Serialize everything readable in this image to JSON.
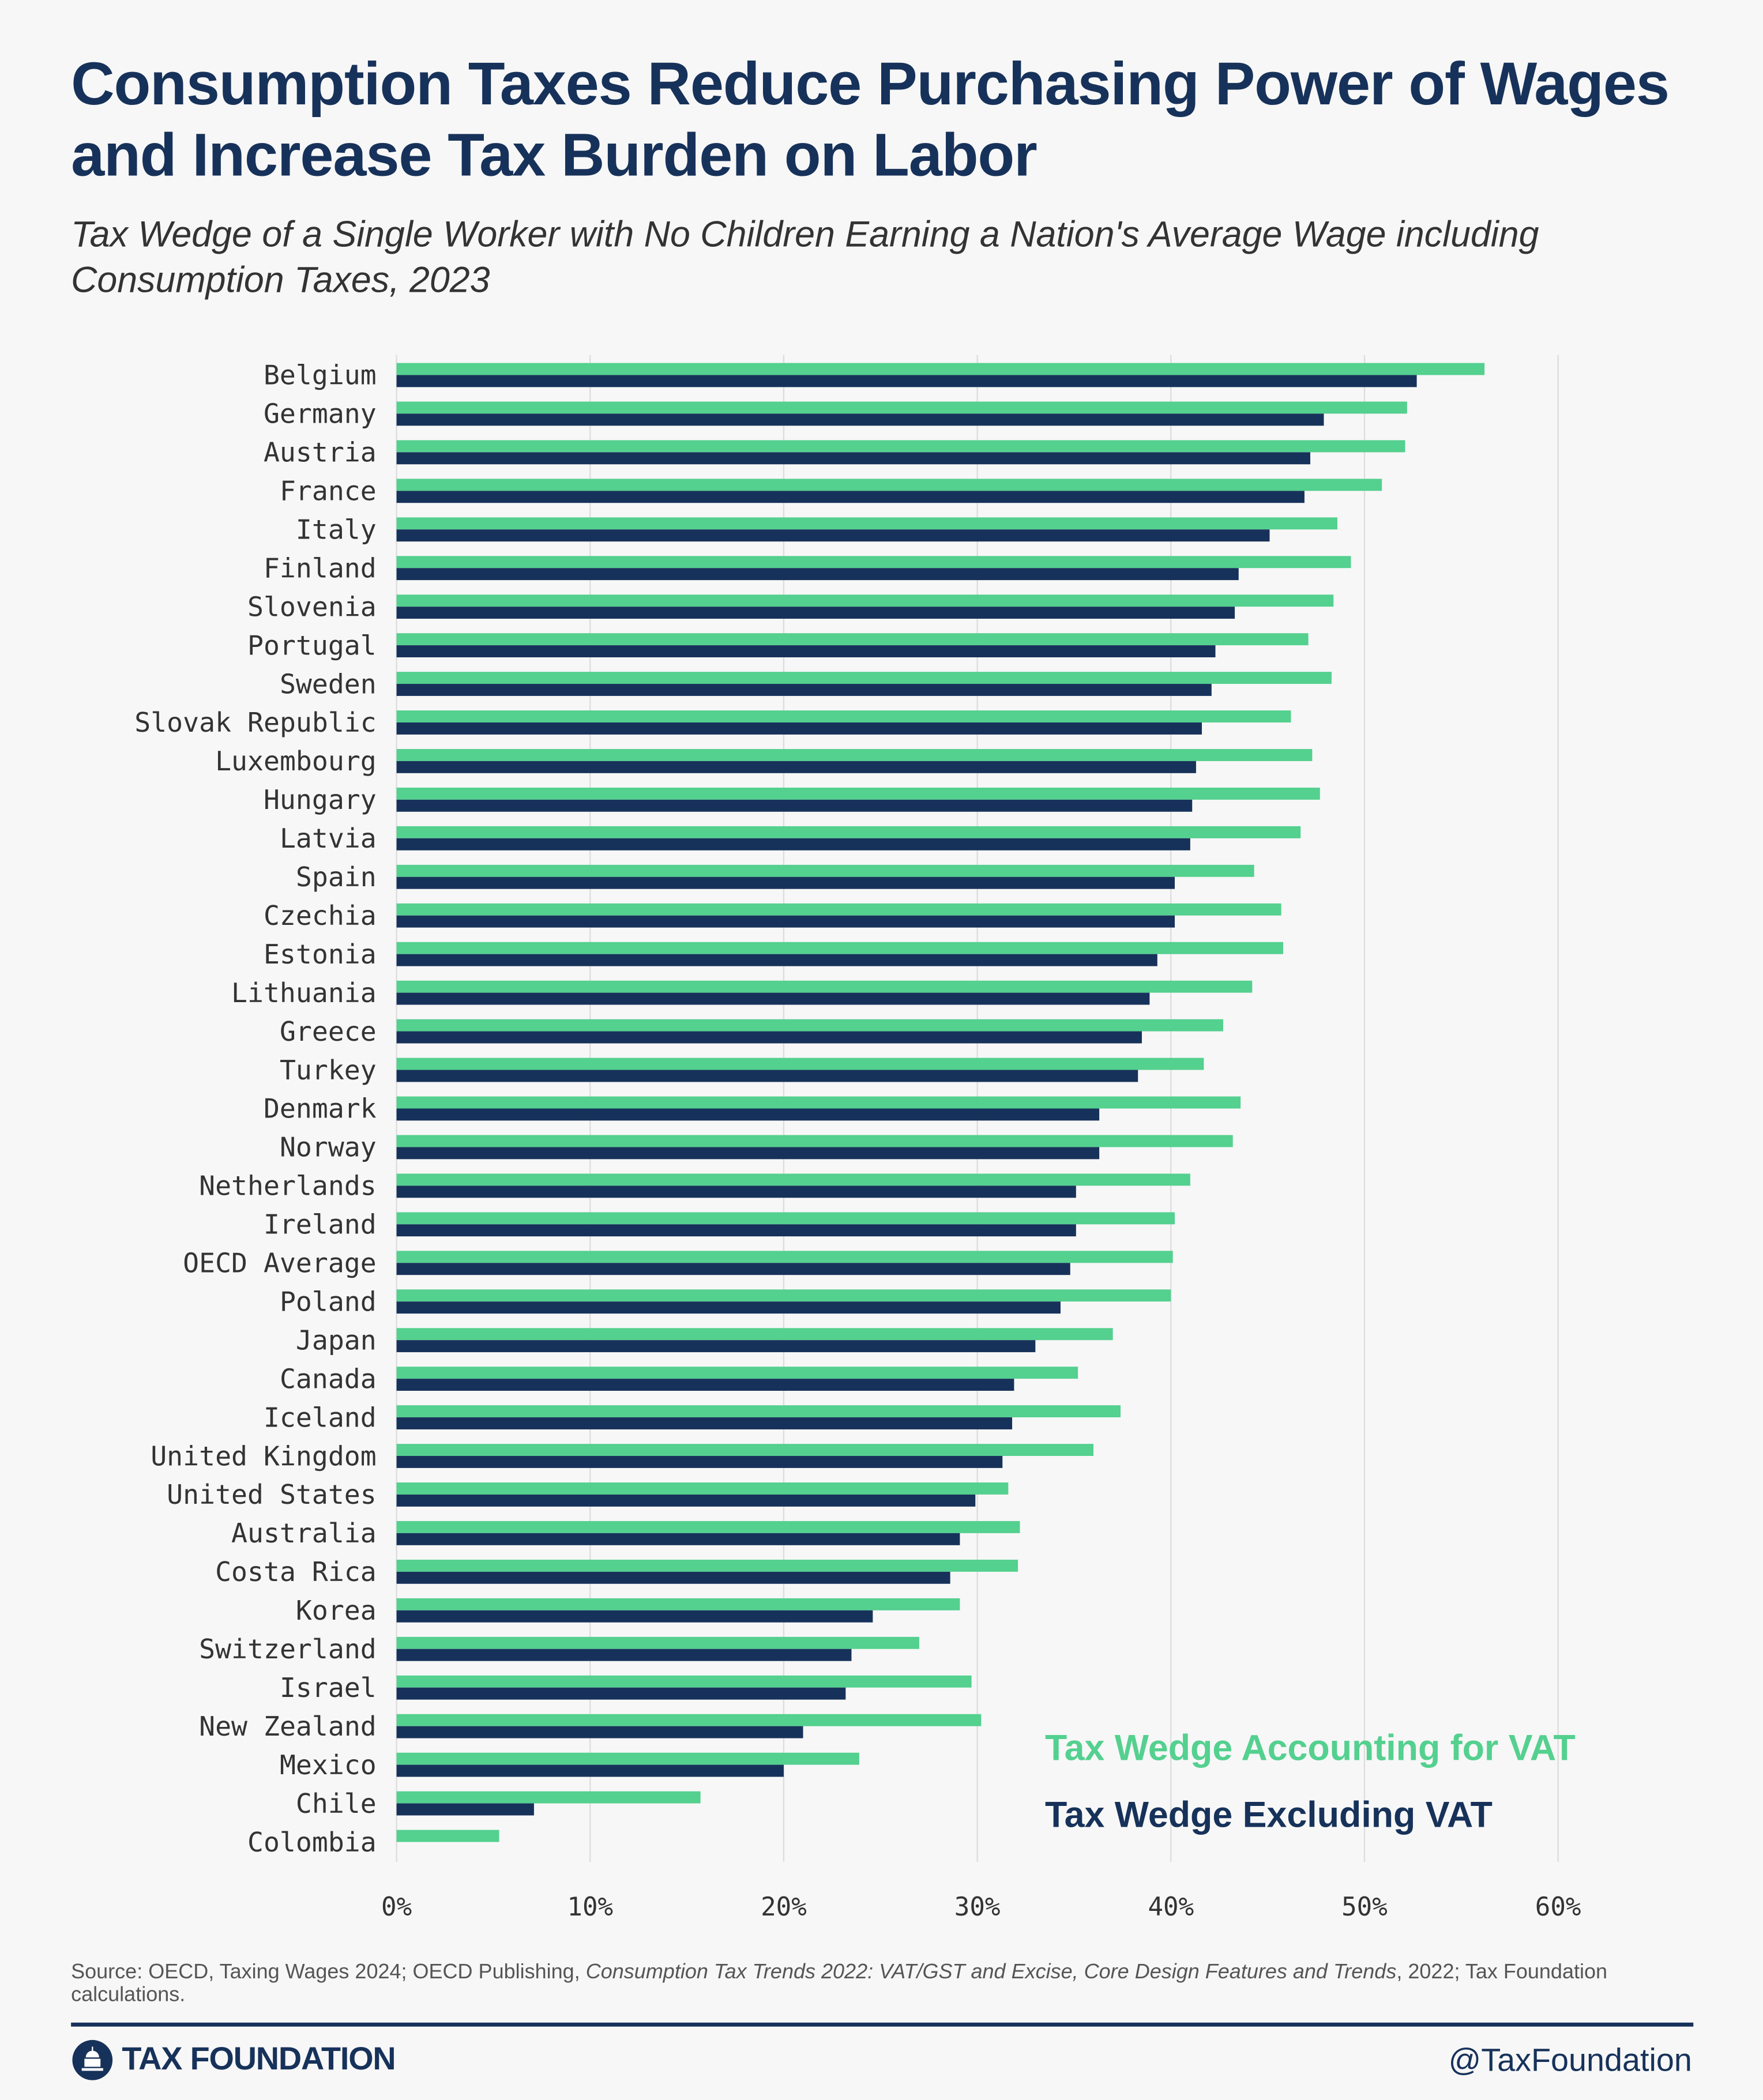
{
  "title": "Consumption Taxes Reduce Purchasing Power of Wages and Increase Tax Burden on Labor",
  "subtitle": "Tax Wedge of a Single Worker with No Children Earning a Nation's Average Wage including Consumption Taxes, 2023",
  "source_prefix": "Source: OECD, Taxing Wages 2024; OECD Publishing, ",
  "source_italic": "Consumption Tax Trends 2022: VAT/GST and Excise, Core Design Features and Trends",
  "source_suffix": ", 2022; Tax Foundation calculations.",
  "footer": {
    "logo_text": "TAX FOUNDATION",
    "handle": "@TaxFoundation"
  },
  "colors": {
    "vat": "#54d08f",
    "excl": "#17325a",
    "grid": "#dddddd"
  },
  "chart_data": {
    "type": "bar",
    "orientation": "horizontal",
    "xlim": [
      0,
      60
    ],
    "xticks": [
      "0%",
      "10%",
      "20%",
      "30%",
      "40%",
      "50%",
      "60%"
    ],
    "grid": true,
    "legend_placement": "bottom-right",
    "categories": [
      "Belgium",
      "Germany",
      "Austria",
      "France",
      "Italy",
      "Finland",
      "Slovenia",
      "Portugal",
      "Sweden",
      "Slovak Republic",
      "Luxembourg",
      "Hungary",
      "Latvia",
      "Spain",
      "Czechia",
      "Estonia",
      "Lithuania",
      "Greece",
      "Turkey",
      "Denmark",
      "Norway",
      "Netherlands",
      "Ireland",
      "OECD Average",
      "Poland",
      "Japan",
      "Canada",
      "Iceland",
      "United Kingdom",
      "United States",
      "Australia",
      "Costa Rica",
      "Korea",
      "Switzerland",
      "Israel",
      "New Zealand",
      "Mexico",
      "Chile",
      "Colombia"
    ],
    "series": [
      {
        "name": "Tax Wedge Accounting for VAT",
        "values": [
          56.2,
          52.2,
          52.1,
          50.9,
          48.6,
          49.3,
          48.4,
          47.1,
          48.3,
          46.2,
          47.3,
          47.7,
          46.7,
          44.3,
          45.7,
          45.8,
          44.2,
          42.7,
          41.7,
          43.6,
          43.2,
          41.0,
          40.2,
          40.1,
          40.0,
          37.0,
          35.2,
          37.4,
          36.0,
          31.6,
          32.2,
          32.1,
          29.1,
          27.0,
          29.7,
          30.2,
          23.9,
          15.7,
          5.3
        ]
      },
      {
        "name": "Tax Wedge Excluding VAT",
        "values": [
          52.7,
          47.9,
          47.2,
          46.9,
          45.1,
          43.5,
          43.3,
          42.3,
          42.1,
          41.6,
          41.3,
          41.1,
          41.0,
          40.2,
          40.2,
          39.3,
          38.9,
          38.5,
          38.3,
          36.3,
          36.3,
          35.1,
          35.1,
          34.8,
          34.3,
          33.0,
          31.9,
          31.8,
          31.3,
          29.9,
          29.1,
          28.6,
          24.6,
          23.5,
          23.2,
          21.0,
          20.0,
          7.1,
          0
        ]
      }
    ]
  }
}
